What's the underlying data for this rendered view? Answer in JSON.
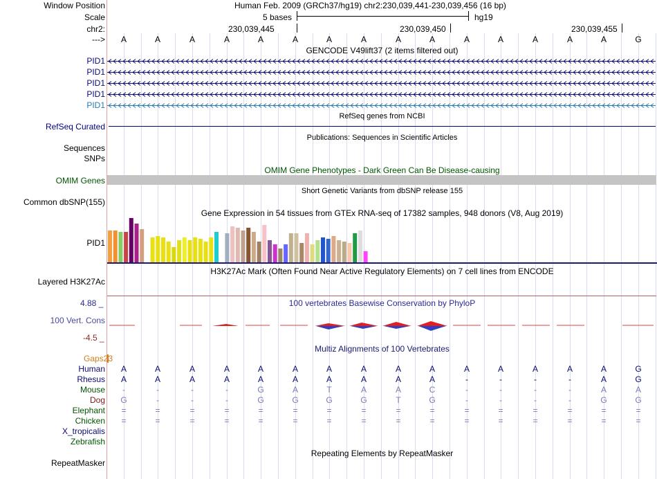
{
  "header": {
    "window_position_label": "Window Position",
    "scale_label": "Scale",
    "chr_label": "chr2:",
    "strand_label": "--->",
    "position_text": "Human Feb. 2009 (GRCh37/hg19)   chr2:230,039,441-230,039,456 (16 bp)",
    "scale_text": "5 bases",
    "assembly": "hg19",
    "ruler_ticks": [
      "230,039,445",
      "230,039,450",
      "230,039,455"
    ]
  },
  "sequence": [
    "A",
    "A",
    "A",
    "A",
    "A",
    "A",
    "A",
    "A",
    "A",
    "A",
    "A",
    "A",
    "A",
    "A",
    "A",
    "G"
  ],
  "gencode": {
    "title": "GENCODE V49lift37 (2 items filtered out)",
    "transcripts": [
      "PID1",
      "PID1",
      "PID1",
      "PID1",
      "PID1"
    ]
  },
  "refseq": {
    "title": "RefSeq genes from NCBI",
    "label": "RefSeq Curated"
  },
  "publications": {
    "title": "Publications: Sequences in Scientific Articles",
    "label_sequences": "Sequences",
    "label_snps": "SNPs"
  },
  "omim": {
    "title": "OMIM Gene Phenotypes - Dark Green Can Be Disease-causing",
    "label": "OMIM Genes"
  },
  "dbsnp": {
    "title": "Short Genetic Variants from dbSNP release 155",
    "label": "Common dbSNP(155)"
  },
  "gtex": {
    "title": "Gene Expression in 54 tissues from GTEx RNA-seq of 17382 samples, 948 donors (V8, Aug 2019)",
    "label": "PID1"
  },
  "h3k27ac": {
    "title": "H3K27Ac Mark (Often Found Near Active Regulatory Elements) on 7 cell lines from ENCODE",
    "label": "Layered H3K27Ac"
  },
  "phylop": {
    "title": "100 vertebrates Basewise Conservation by PhyloP",
    "label": "100 Vert. Cons",
    "max_label": "4.88 _",
    "min_label": "-4.5 _"
  },
  "multiz": {
    "title": "Multiz Alignments of 100 Vertebrates",
    "gaps_label": "Gaps23",
    "species": [
      {
        "name": "Human",
        "bases": [
          "A",
          "A",
          "A",
          "A",
          "A",
          "A",
          "A",
          "A",
          "A",
          "A",
          "A",
          "A",
          "A",
          "A",
          "A",
          "G"
        ]
      },
      {
        "name": "Rhesus",
        "bases": [
          "A",
          "A",
          "A",
          "A",
          "A",
          "A",
          "A",
          "A",
          "A",
          "A",
          "-",
          "-",
          "-",
          "-",
          "A",
          "G"
        ]
      },
      {
        "name": "Mouse",
        "bases": [
          "-",
          "-",
          "-",
          "-",
          "G",
          "A",
          "T",
          "A",
          "A",
          "C",
          "-",
          "-",
          "-",
          "-",
          "A",
          "A"
        ]
      },
      {
        "name": "Dog",
        "bases": [
          "G",
          "-",
          "-",
          "-",
          "G",
          "G",
          "G",
          "G",
          "T",
          "G",
          "-",
          "-",
          "-",
          "-",
          "G",
          "G"
        ]
      },
      {
        "name": "Elephant",
        "bases": [
          "=",
          "=",
          "=",
          "=",
          "=",
          "=",
          "=",
          "=",
          "=",
          "=",
          "=",
          "=",
          "=",
          "=",
          "=",
          "="
        ]
      },
      {
        "name": "Chicken",
        "bases": [
          "=",
          "=",
          "=",
          "=",
          "=",
          "=",
          "=",
          "=",
          "=",
          "=",
          "=",
          "=",
          "=",
          "=",
          "=",
          "="
        ]
      },
      {
        "name": "X_tropicalis",
        "bases": []
      },
      {
        "name": "Zebrafish",
        "bases": []
      }
    ]
  },
  "repeatmasker": {
    "title": "Repeating Elements by RepeatMasker",
    "label": "RepeatMasker"
  },
  "colors": {
    "navy": "#000080",
    "omim_green": "#005500",
    "gencode_blue": "#0c0c78",
    "pid1_teal": "#2a7ab0",
    "phylop_label": "#4a4aa0"
  }
}
